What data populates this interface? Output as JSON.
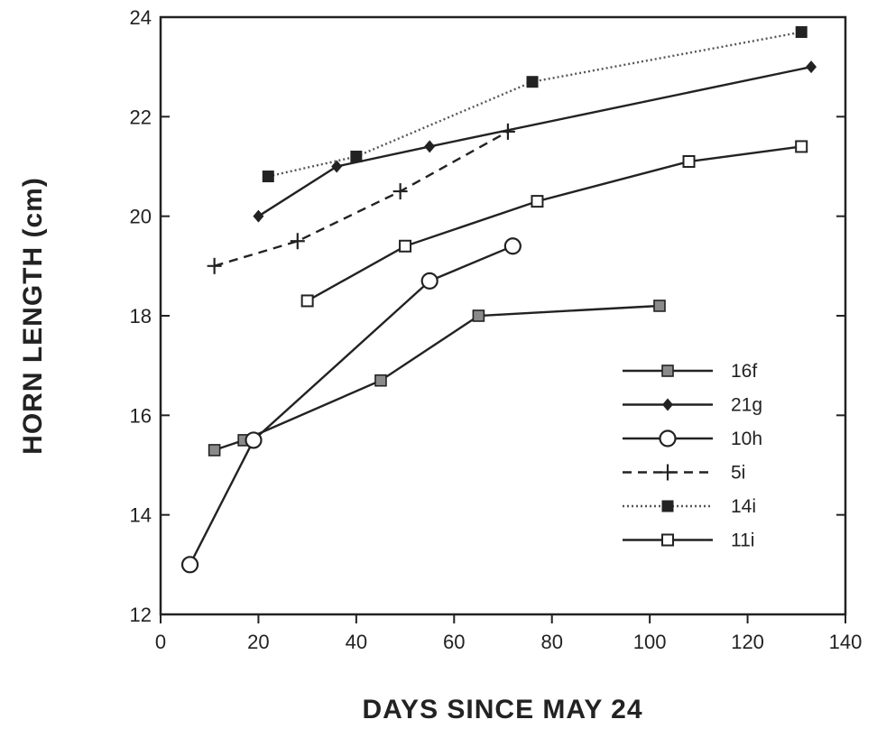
{
  "chart_data": {
    "type": "line",
    "title": "",
    "xlabel": "DAYS SINCE MAY 24",
    "ylabel": "HORN LENGTH (cm)",
    "xlim": [
      0,
      140
    ],
    "ylim": [
      12,
      24
    ],
    "xticks": [
      0,
      20,
      40,
      60,
      80,
      100,
      120,
      140
    ],
    "yticks": [
      12,
      14,
      16,
      18,
      20,
      22,
      24
    ],
    "grid": false,
    "legend_position": "bottom-right",
    "series": [
      {
        "name": "16f",
        "marker": "square-gray",
        "line": "solid",
        "points": [
          [
            11,
            15.3
          ],
          [
            17,
            15.5
          ],
          [
            45,
            16.7
          ],
          [
            65,
            18.0
          ],
          [
            102,
            18.2
          ]
        ]
      },
      {
        "name": "21g",
        "marker": "diamond-filled",
        "line": "solid",
        "points": [
          [
            20,
            20.0
          ],
          [
            36,
            21.0
          ],
          [
            55,
            21.4
          ],
          [
            133,
            23.0
          ]
        ]
      },
      {
        "name": "10h",
        "marker": "circle-open",
        "line": "solid",
        "points": [
          [
            6,
            13.0
          ],
          [
            19,
            15.5
          ],
          [
            55,
            18.7
          ],
          [
            72,
            19.4
          ]
        ]
      },
      {
        "name": "5i",
        "marker": "plus",
        "line": "dashed",
        "points": [
          [
            11,
            19.0
          ],
          [
            28,
            19.5
          ],
          [
            49,
            20.5
          ],
          [
            71,
            21.7
          ]
        ]
      },
      {
        "name": "14i",
        "marker": "square-filled",
        "line": "dotted",
        "points": [
          [
            22,
            20.8
          ],
          [
            40,
            21.2
          ],
          [
            76,
            22.7
          ],
          [
            131,
            23.7
          ]
        ]
      },
      {
        "name": "11i",
        "marker": "square-open",
        "line": "solid",
        "points": [
          [
            30,
            18.3
          ],
          [
            50,
            19.4
          ],
          [
            77,
            20.3
          ],
          [
            108,
            21.1
          ],
          [
            131,
            21.4
          ]
        ]
      }
    ]
  }
}
